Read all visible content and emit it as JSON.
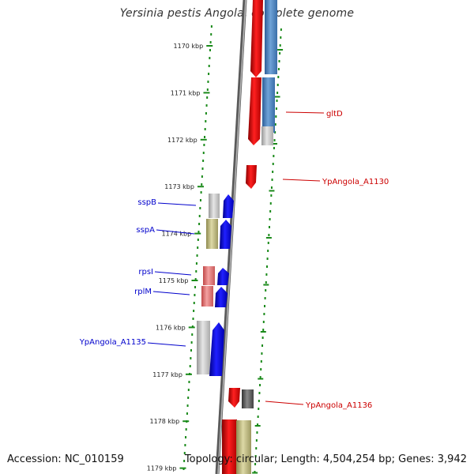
{
  "title": "Yersinia pestis Angola, complete genome",
  "accession": "Accession: NC_010159",
  "topology": "Topology: circular; Length: 4,504,254 bp; Genes: 3,942",
  "colors": {
    "backbone": "#777777",
    "tick": "#1a8a1a",
    "forward_label": "#0000cc",
    "reverse_label": "#cc0000"
  },
  "ruler": {
    "unit": "kbp",
    "labels": [
      "1170 kbp",
      "1171 kbp",
      "1172 kbp",
      "1173 kbp",
      "1174 kbp",
      "1175 kbp",
      "1176 kbp",
      "1177 kbp",
      "1178 kbp",
      "1179 kbp"
    ]
  },
  "features": [
    {
      "label": "gltD",
      "strand": "reverse",
      "category": "gene"
    },
    {
      "label": "YpAngola_A1130",
      "strand": "reverse",
      "category": "gene"
    },
    {
      "label": "sspB",
      "strand": "forward",
      "category": "gene"
    },
    {
      "label": "sspA",
      "strand": "forward",
      "category": "gene"
    },
    {
      "label": "rpsI",
      "strand": "forward",
      "category": "gene"
    },
    {
      "label": "rplM",
      "strand": "forward",
      "category": "gene"
    },
    {
      "label": "YpAngola_A1135",
      "strand": "forward",
      "category": "gene"
    },
    {
      "label": "YpAngola_A1136",
      "strand": "reverse",
      "category": "gene"
    }
  ]
}
